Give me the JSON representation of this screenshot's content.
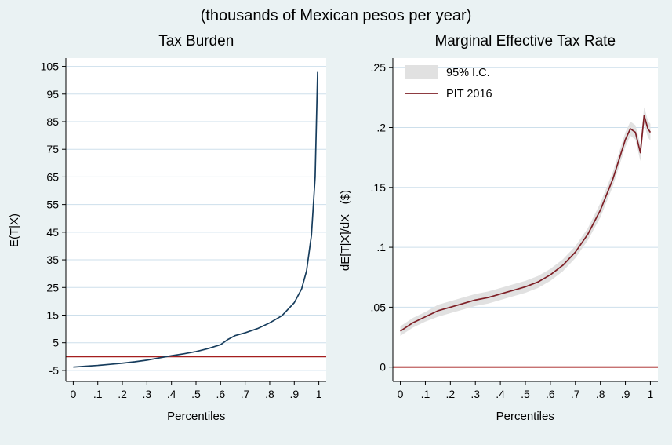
{
  "title": "(thousands of Mexican pesos per year)",
  "colors": {
    "background": "#eaf2f3",
    "plot_bg": "#ffffff",
    "grid": "#cddfeb",
    "band": "#e1e1e1",
    "axis": "#000000",
    "navy": "#173d5d",
    "maroon": "#7e1f26",
    "red_line": "#a41e1e"
  },
  "chart_data": [
    {
      "type": "line",
      "title": "Tax Burden",
      "xlabel": "Percentiles",
      "ylabel": "E(T|X)",
      "xlim": [
        -0.03,
        1.03
      ],
      "ylim": [
        -9,
        108
      ],
      "grid": "horizontal",
      "xtick_values": [
        0,
        0.1,
        0.2,
        0.3,
        0.4,
        0.5,
        0.6,
        0.7,
        0.8,
        0.9,
        1
      ],
      "xtick_labels": [
        "0",
        ".1",
        ".2",
        ".3",
        ".4",
        ".5",
        ".6",
        ".7",
        ".8",
        ".9",
        "1"
      ],
      "ytick_values": [
        -5,
        5,
        15,
        25,
        35,
        45,
        55,
        65,
        75,
        85,
        95,
        105
      ],
      "ytick_labels": [
        "-5",
        "5",
        "15",
        "25",
        "35",
        "45",
        "55",
        "65",
        "75",
        "85",
        "95",
        "105"
      ],
      "hline": {
        "y": 0,
        "color": "#a41e1e",
        "width": 1.8
      },
      "series": [
        {
          "name": "E(T|X)",
          "color": "#173d5d",
          "width": 1.7,
          "x": [
            0,
            0.05,
            0.1,
            0.15,
            0.2,
            0.25,
            0.3,
            0.35,
            0.4,
            0.45,
            0.5,
            0.55,
            0.6,
            0.63,
            0.66,
            0.7,
            0.75,
            0.8,
            0.85,
            0.9,
            0.93,
            0.95,
            0.97,
            0.985,
            0.995
          ],
          "y": [
            -3.8,
            -3.5,
            -3.2,
            -2.8,
            -2.4,
            -1.9,
            -1.3,
            -0.5,
            0.3,
            1.0,
            1.8,
            2.9,
            4.3,
            6.2,
            7.6,
            8.6,
            10.1,
            12.2,
            14.8,
            19.5,
            24.5,
            31,
            44,
            65,
            103
          ]
        }
      ]
    },
    {
      "type": "line",
      "title": "Marginal Effective Tax Rate",
      "xlabel": "Percentiles",
      "ylabel": "dE[T|X]/dX   ($)",
      "xlim": [
        -0.03,
        1.03
      ],
      "ylim": [
        -0.012,
        0.258
      ],
      "grid": "horizontal",
      "xtick_values": [
        0,
        0.1,
        0.2,
        0.3,
        0.4,
        0.5,
        0.6,
        0.7,
        0.8,
        0.9,
        1
      ],
      "xtick_labels": [
        "0",
        ".1",
        ".2",
        ".3",
        ".4",
        ".5",
        ".6",
        ".7",
        ".8",
        ".9",
        "1"
      ],
      "ytick_values": [
        0,
        0.05,
        0.1,
        0.15,
        0.2,
        0.25
      ],
      "ytick_labels": [
        "0",
        ".05",
        ".1",
        ".15",
        ".2",
        ".25"
      ],
      "hline": {
        "y": 0,
        "color": "#a41e1e",
        "width": 1.8
      },
      "legend": [
        {
          "type": "band",
          "label": "95% I.C."
        },
        {
          "type": "line",
          "label": "PIT 2016"
        }
      ],
      "series": [
        {
          "name": "PIT 2016",
          "color": "#7e1f26",
          "width": 1.7,
          "x": [
            0,
            0.05,
            0.1,
            0.15,
            0.2,
            0.25,
            0.3,
            0.35,
            0.4,
            0.45,
            0.5,
            0.55,
            0.6,
            0.65,
            0.7,
            0.75,
            0.8,
            0.85,
            0.9,
            0.92,
            0.94,
            0.96,
            0.975,
            0.99,
            1
          ],
          "y": [
            0.03,
            0.037,
            0.042,
            0.047,
            0.05,
            0.053,
            0.056,
            0.058,
            0.061,
            0.064,
            0.067,
            0.071,
            0.077,
            0.085,
            0.096,
            0.111,
            0.131,
            0.157,
            0.19,
            0.199,
            0.196,
            0.179,
            0.21,
            0.199,
            0.196
          ],
          "ci": [
            0.004,
            0.004,
            0.004,
            0.005,
            0.005,
            0.005,
            0.005,
            0.005,
            0.005,
            0.005,
            0.005,
            0.005,
            0.005,
            0.005,
            0.005,
            0.005,
            0.006,
            0.006,
            0.006,
            0.006,
            0.006,
            0.007,
            0.007,
            0.007,
            0.007
          ]
        }
      ]
    }
  ]
}
